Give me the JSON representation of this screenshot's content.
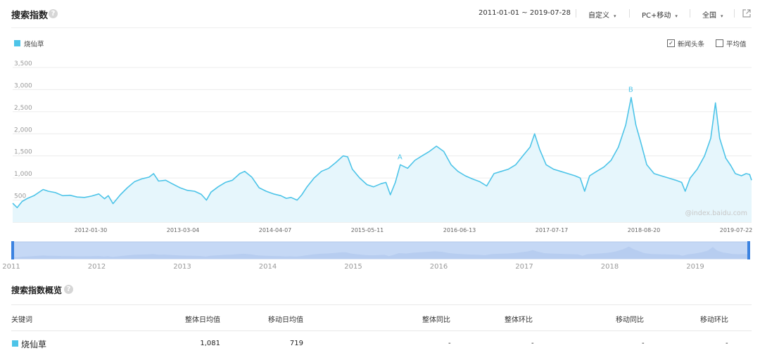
{
  "header": {
    "title": "搜索指数",
    "help": "?",
    "date_range": "2011-01-01 ~ 2019-07-28",
    "period": "自定义",
    "device": "PC+移动",
    "region": "全国",
    "caret": "▾"
  },
  "legend": {
    "keyword": "烧仙草",
    "color": "#4dc4e8"
  },
  "options": {
    "news": {
      "label": "新闻头条",
      "checked": true,
      "mark": "✓"
    },
    "average": {
      "label": "平均值",
      "checked": false
    }
  },
  "watermark": "@index.baidu.com",
  "chart_data": {
    "type": "area",
    "series": [
      {
        "name": "烧仙草",
        "points": [
          [
            "2011-01-01",
            430
          ],
          [
            "2011-01-20",
            330
          ],
          [
            "2011-02-10",
            470
          ],
          [
            "2011-03-05",
            540
          ],
          [
            "2011-04-01",
            600
          ],
          [
            "2011-05-10",
            740
          ],
          [
            "2011-06-01",
            700
          ],
          [
            "2011-07-01",
            670
          ],
          [
            "2011-08-01",
            600
          ],
          [
            "2011-09-01",
            610
          ],
          [
            "2011-10-01",
            570
          ],
          [
            "2011-11-01",
            560
          ],
          [
            "2011-12-01",
            590
          ],
          [
            "2012-01-01",
            640
          ],
          [
            "2012-01-25",
            530
          ],
          [
            "2012-02-10",
            600
          ],
          [
            "2012-03-01",
            420
          ],
          [
            "2012-04-01",
            620
          ],
          [
            "2012-05-01",
            780
          ],
          [
            "2012-06-01",
            920
          ],
          [
            "2012-07-01",
            980
          ],
          [
            "2012-08-01",
            1020
          ],
          [
            "2012-08-20",
            1100
          ],
          [
            "2012-09-10",
            930
          ],
          [
            "2012-10-10",
            950
          ],
          [
            "2012-11-10",
            860
          ],
          [
            "2012-12-10",
            780
          ],
          [
            "2013-01-10",
            720
          ],
          [
            "2013-02-10",
            700
          ],
          [
            "2013-03-10",
            630
          ],
          [
            "2013-04-01",
            500
          ],
          [
            "2013-04-20",
            680
          ],
          [
            "2013-05-20",
            800
          ],
          [
            "2013-06-20",
            900
          ],
          [
            "2013-07-20",
            950
          ],
          [
            "2013-08-20",
            1100
          ],
          [
            "2013-09-10",
            1150
          ],
          [
            "2013-10-10",
            1020
          ],
          [
            "2013-11-10",
            780
          ],
          [
            "2013-12-10",
            700
          ],
          [
            "2014-01-10",
            640
          ],
          [
            "2014-02-10",
            600
          ],
          [
            "2014-03-05",
            540
          ],
          [
            "2014-03-25",
            560
          ],
          [
            "2014-04-20",
            500
          ],
          [
            "2014-05-10",
            620
          ],
          [
            "2014-06-01",
            800
          ],
          [
            "2014-07-01",
            1000
          ],
          [
            "2014-08-01",
            1150
          ],
          [
            "2014-09-01",
            1220
          ],
          [
            "2014-10-01",
            1350
          ],
          [
            "2014-11-01",
            1500
          ],
          [
            "2014-11-20",
            1480
          ],
          [
            "2014-12-10",
            1200
          ],
          [
            "2015-01-10",
            1000
          ],
          [
            "2015-02-10",
            850
          ],
          [
            "2015-03-10",
            800
          ],
          [
            "2015-04-10",
            870
          ],
          [
            "2015-05-01",
            900
          ],
          [
            "2015-05-20",
            620
          ],
          [
            "2015-06-10",
            900
          ],
          [
            "2015-07-01",
            1300
          ],
          [
            "2015-08-01",
            1220
          ],
          [
            "2015-09-01",
            1400
          ],
          [
            "2015-10-01",
            1500
          ],
          [
            "2015-11-01",
            1600
          ],
          [
            "2015-12-01",
            1720
          ],
          [
            "2016-01-01",
            1600
          ],
          [
            "2016-02-01",
            1300
          ],
          [
            "2016-03-01",
            1150
          ],
          [
            "2016-04-01",
            1050
          ],
          [
            "2016-05-01",
            980
          ],
          [
            "2016-06-01",
            920
          ],
          [
            "2016-07-01",
            820
          ],
          [
            "2016-08-01",
            1100
          ],
          [
            "2016-09-01",
            1150
          ],
          [
            "2016-10-01",
            1200
          ],
          [
            "2016-11-01",
            1300
          ],
          [
            "2016-12-01",
            1500
          ],
          [
            "2017-01-01",
            1700
          ],
          [
            "2017-01-20",
            2000
          ],
          [
            "2017-02-10",
            1650
          ],
          [
            "2017-03-10",
            1300
          ],
          [
            "2017-04-10",
            1200
          ],
          [
            "2017-05-10",
            1150
          ],
          [
            "2017-06-10",
            1100
          ],
          [
            "2017-07-10",
            1050
          ],
          [
            "2017-08-01",
            1000
          ],
          [
            "2017-08-20",
            700
          ],
          [
            "2017-09-10",
            1050
          ],
          [
            "2017-10-10",
            1150
          ],
          [
            "2017-11-10",
            1250
          ],
          [
            "2017-12-10",
            1400
          ],
          [
            "2018-01-10",
            1700
          ],
          [
            "2018-02-10",
            2200
          ],
          [
            "2018-03-05",
            2820
          ],
          [
            "2018-03-25",
            2200
          ],
          [
            "2018-04-15",
            1800
          ],
          [
            "2018-05-10",
            1300
          ],
          [
            "2018-06-10",
            1100
          ],
          [
            "2018-07-10",
            1050
          ],
          [
            "2018-08-10",
            1000
          ],
          [
            "2018-09-10",
            950
          ],
          [
            "2018-10-05",
            900
          ],
          [
            "2018-10-20",
            700
          ],
          [
            "2018-11-10",
            1000
          ],
          [
            "2018-12-10",
            1200
          ],
          [
            "2019-01-10",
            1500
          ],
          [
            "2019-02-05",
            1900
          ],
          [
            "2019-02-25",
            2700
          ],
          [
            "2019-03-15",
            1900
          ],
          [
            "2019-04-10",
            1450
          ],
          [
            "2019-05-01",
            1280
          ],
          [
            "2019-05-20",
            1100
          ],
          [
            "2019-06-15",
            1050
          ],
          [
            "2019-07-05",
            1100
          ],
          [
            "2019-07-20",
            1080
          ],
          [
            "2019-07-28",
            950
          ]
        ]
      }
    ],
    "annotations": [
      {
        "label": "A",
        "x": "2015-07-01",
        "y": 1300
      },
      {
        "label": "B",
        "x": "2018-03-05",
        "y": 2820
      }
    ],
    "y_ticks": [
      "3,500",
      "3,000",
      "2,500",
      "2,000",
      "1,500",
      "1,000",
      "500"
    ],
    "y_values": [
      3500,
      3000,
      2500,
      2000,
      1500,
      1000,
      500
    ],
    "ylim": [
      0,
      3500
    ],
    "x_tick_labels": [
      "2012-01-30",
      "2013-03-04",
      "2014-04-07",
      "2015-05-11",
      "2016-06-13",
      "2017-07-17",
      "2018-08-20",
      "2019-07-22"
    ],
    "x_range": [
      "2011-01-01",
      "2019-07-28"
    ],
    "grid": true,
    "legend_position": "top-left",
    "color": "#4dc4e8"
  },
  "slider": {
    "year_labels": [
      "2011",
      "2012",
      "2013",
      "2014",
      "2015",
      "2016",
      "2017",
      "2018",
      "2019"
    ]
  },
  "overview": {
    "title": "搜索指数概览",
    "help": "?",
    "columns": [
      "关键词",
      "整体日均值",
      "移动日均值",
      "整体同比",
      "整体环比",
      "移动同比",
      "移动环比"
    ],
    "row": {
      "keyword": "烧仙草",
      "overall_avg": "1,081",
      "mobile_avg": "719",
      "overall_yoy": "-",
      "overall_mom": "-",
      "mobile_yoy": "-",
      "mobile_mom": "-"
    }
  }
}
